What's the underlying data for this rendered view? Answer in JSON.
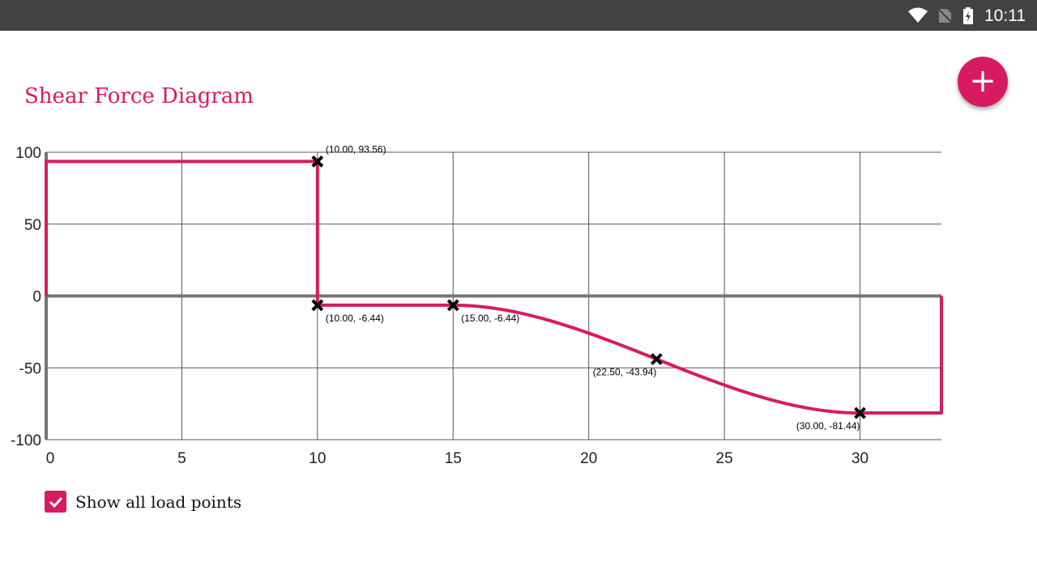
{
  "status_bar": {
    "time": "10:11",
    "icons": [
      "wifi-icon",
      "no-sim-icon",
      "battery-charging-icon"
    ]
  },
  "title": "Shear Force Diagram",
  "fab": {
    "icon": "plus-icon",
    "label": "+"
  },
  "show_all_load_points": {
    "label": "Show all load points",
    "checked": true
  },
  "colors": {
    "accent": "#d81b60",
    "axis": "#757575",
    "grid": "#555555"
  },
  "chart_data": {
    "type": "line",
    "title": "Shear Force Diagram",
    "xlim": [
      0,
      33
    ],
    "ylim": [
      -100,
      100
    ],
    "x_ticks": [
      "0",
      "5",
      "10",
      "15",
      "20",
      "25",
      "30"
    ],
    "y_ticks": [
      "100",
      "50",
      "0",
      "-50",
      "-100"
    ],
    "grid": true,
    "series": [
      {
        "points": [
          [
            0,
            0
          ],
          [
            0,
            93.56
          ],
          [
            10,
            93.56
          ],
          [
            10,
            -6.44
          ],
          [
            15,
            -6.44
          ],
          [
            22.5,
            -43.94
          ],
          [
            30,
            -81.44
          ],
          [
            33,
            -81.44
          ],
          [
            33,
            0
          ]
        ],
        "curve_segment": {
          "from": 15,
          "to": 30,
          "shape": "cubic"
        }
      }
    ],
    "annotations": [
      {
        "x": 10,
        "y": 93.56,
        "label": "(10.00, 93.56)"
      },
      {
        "x": 10,
        "y": -6.44,
        "label": "(10.00, -6.44)"
      },
      {
        "x": 15,
        "y": -6.44,
        "label": "(15.00, -6.44)"
      },
      {
        "x": 22.5,
        "y": -43.94,
        "label": "(22.50, -43.94)"
      },
      {
        "x": 30,
        "y": -81.44,
        "label": "(30.00, -81.44)"
      }
    ]
  }
}
